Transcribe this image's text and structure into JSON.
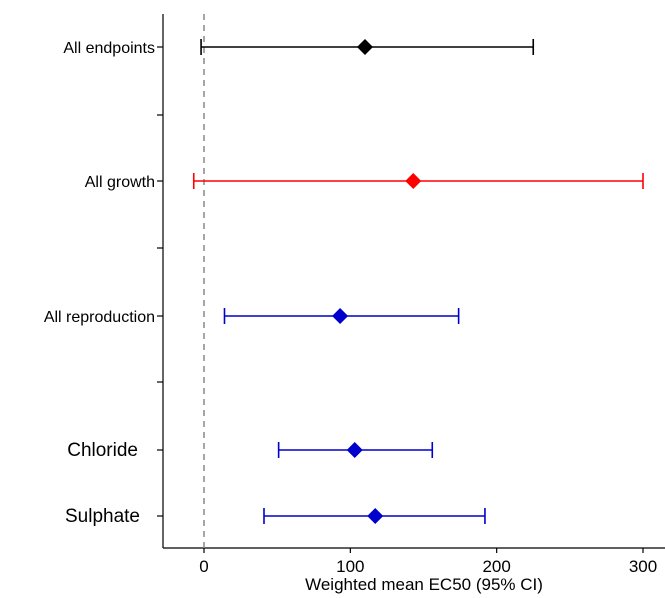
{
  "chart_data": {
    "type": "forest",
    "title": "",
    "xlabel": "Weighted mean EC50 (95% CI)",
    "ylabel": "",
    "xlim": [
      -14,
      308
    ],
    "x_ticks": [
      0,
      100,
      200,
      300
    ],
    "x_tick_labels": [
      "0",
      "100",
      "200",
      "300"
    ],
    "reference_line": {
      "x": 0,
      "style": "dashed"
    },
    "grid": false,
    "legend": "none",
    "rows": [
      {
        "label": "All endpoints",
        "estimate": 110,
        "lower": -2,
        "upper": 225,
        "color": "#000000"
      },
      {
        "label": "All growth",
        "estimate": 143,
        "lower": -7,
        "upper": 300,
        "color": "#ff0000"
      },
      {
        "label": "All reproduction",
        "estimate": 93,
        "lower": 14,
        "upper": 174,
        "color": "#0000cc"
      },
      {
        "label": "Chloride",
        "estimate": 103,
        "lower": 51,
        "upper": 156,
        "color": "#0000cc"
      },
      {
        "label": "Sulphate",
        "estimate": 117,
        "lower": 41,
        "upper": 192,
        "color": "#0000cc"
      }
    ]
  }
}
